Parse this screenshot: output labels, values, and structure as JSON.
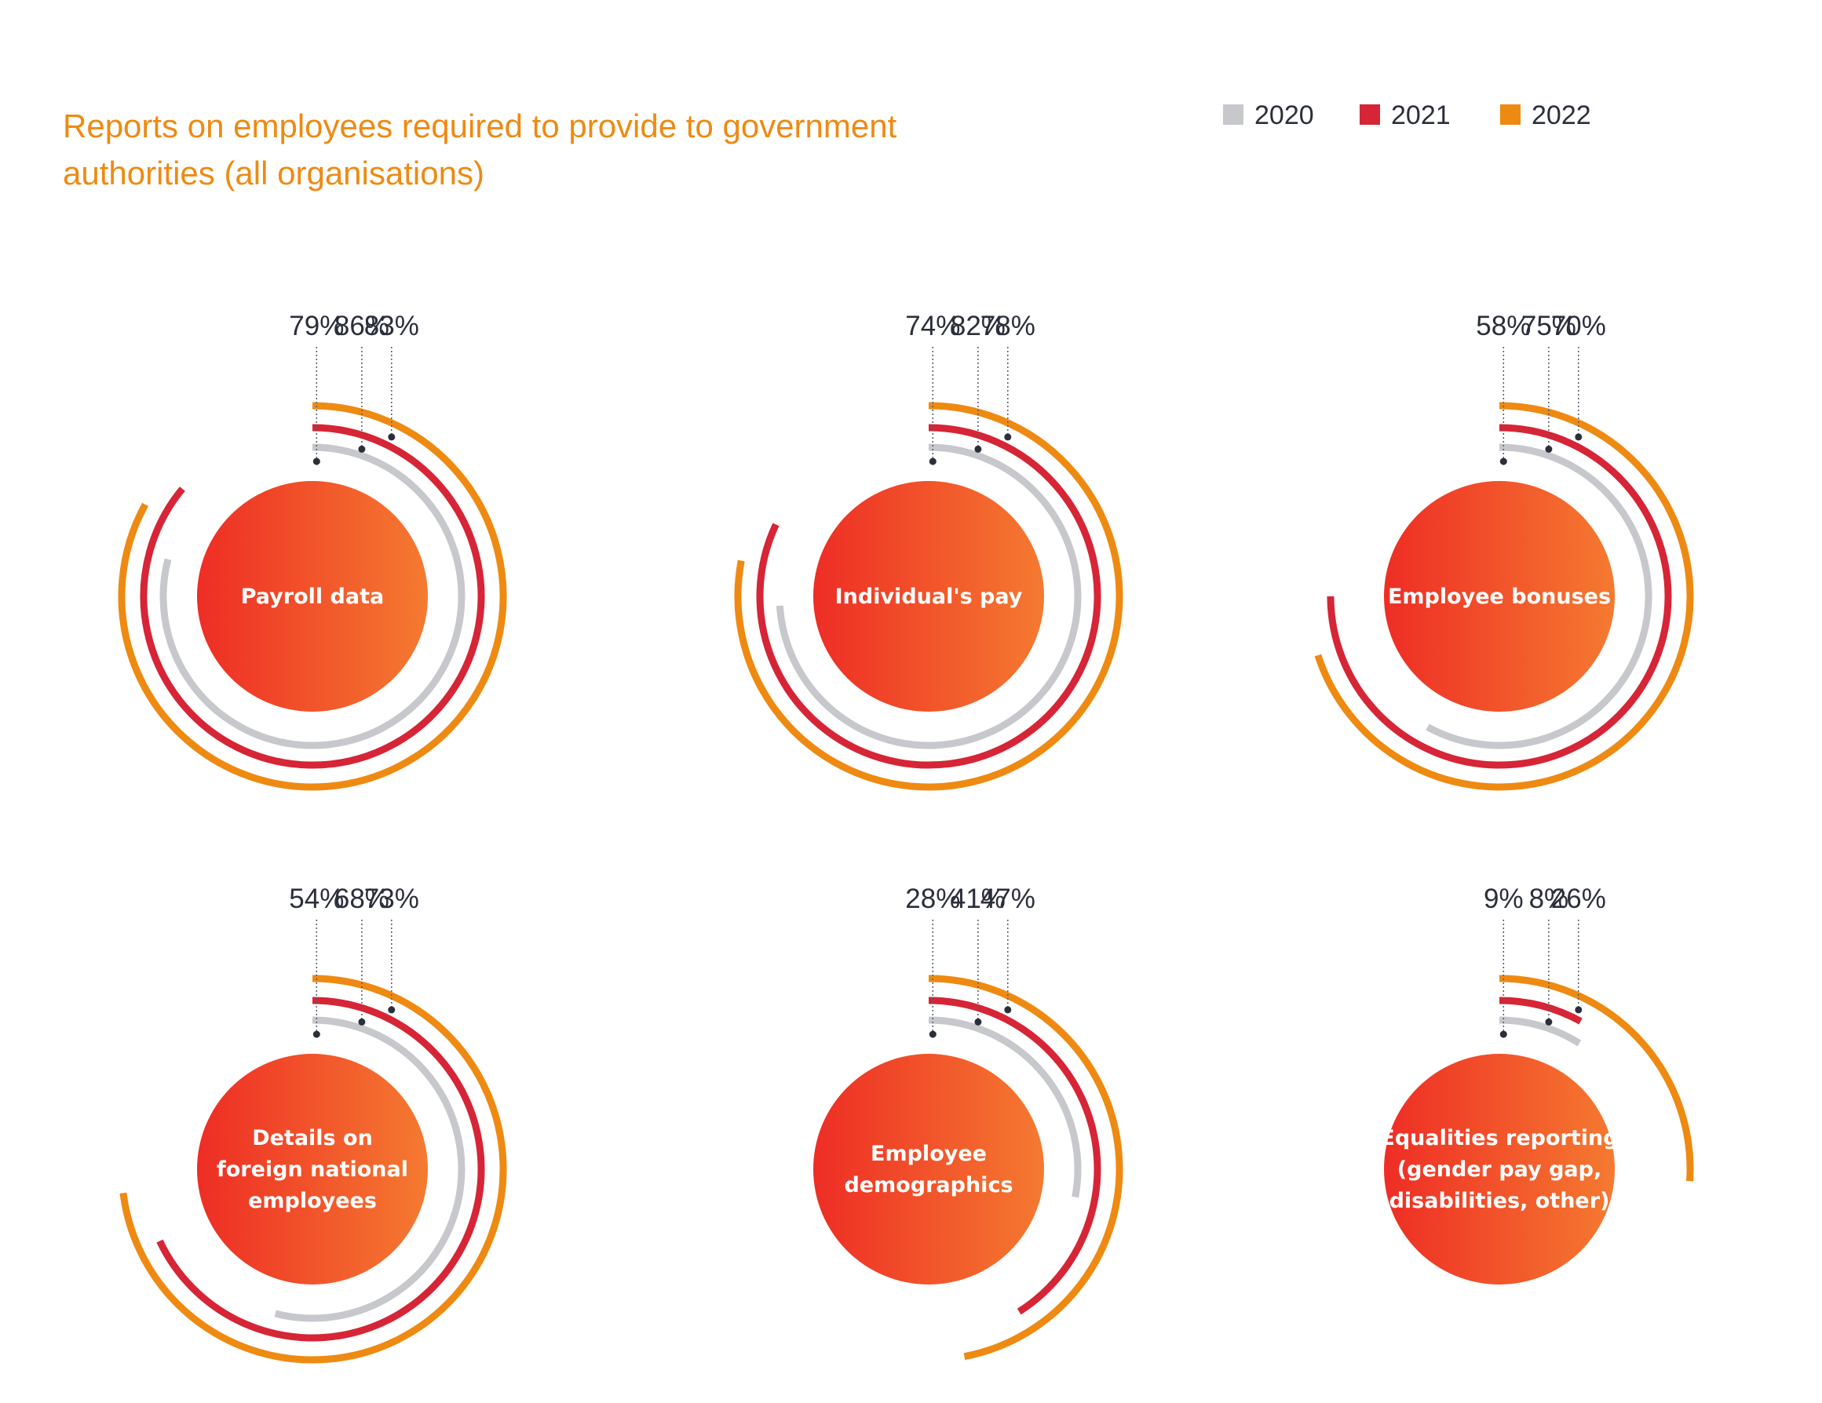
{
  "colors": {
    "2020": "#C6C8CC",
    "2021": "#D62536",
    "2022": "#EE8A12",
    "circle_start": "#EE2D25",
    "circle_end": "#F57A30",
    "title": "#EE8A12"
  },
  "chart_data": {
    "type": "radial-bar",
    "title": "Reports on employees required to provide to government authorities (all organisations)",
    "title_lines": [
      "Reports on employees required to provide to government",
      "authorities (all organisations)"
    ],
    "legend": [
      {
        "name": "2020",
        "color": "#C6C8CC"
      },
      {
        "name": "2021",
        "color": "#D62536"
      },
      {
        "name": "2022",
        "color": "#EE8A12"
      }
    ],
    "legend_position": "top-right",
    "series_names": [
      "2020",
      "2021",
      "2022"
    ],
    "categories": [
      {
        "name": "Payroll data",
        "lines": [
          "Payroll data"
        ],
        "values": [
          79,
          86,
          83
        ]
      },
      {
        "name": "Individual's pay",
        "lines": [
          "Individual's pay"
        ],
        "values": [
          74,
          82,
          78
        ]
      },
      {
        "name": "Employee bonuses",
        "lines": [
          "Employee bonuses"
        ],
        "values": [
          58,
          75,
          70
        ]
      },
      {
        "name": "Details on foreign national employees",
        "lines": [
          "Details on",
          "foreign national",
          "employees"
        ],
        "values": [
          54,
          68,
          73
        ]
      },
      {
        "name": "Employee demographics",
        "lines": [
          "Employee",
          "demographics"
        ],
        "values": [
          28,
          41,
          47
        ]
      },
      {
        "name": "Equalities reporting (gender pay gap, disabilities, other)",
        "lines": [
          "Equalities reporting",
          "(gender pay gap,",
          "disabilities, other)"
        ],
        "values": [
          9,
          8,
          26
        ]
      }
    ],
    "value_suffix": "%",
    "max_value": 100
  }
}
